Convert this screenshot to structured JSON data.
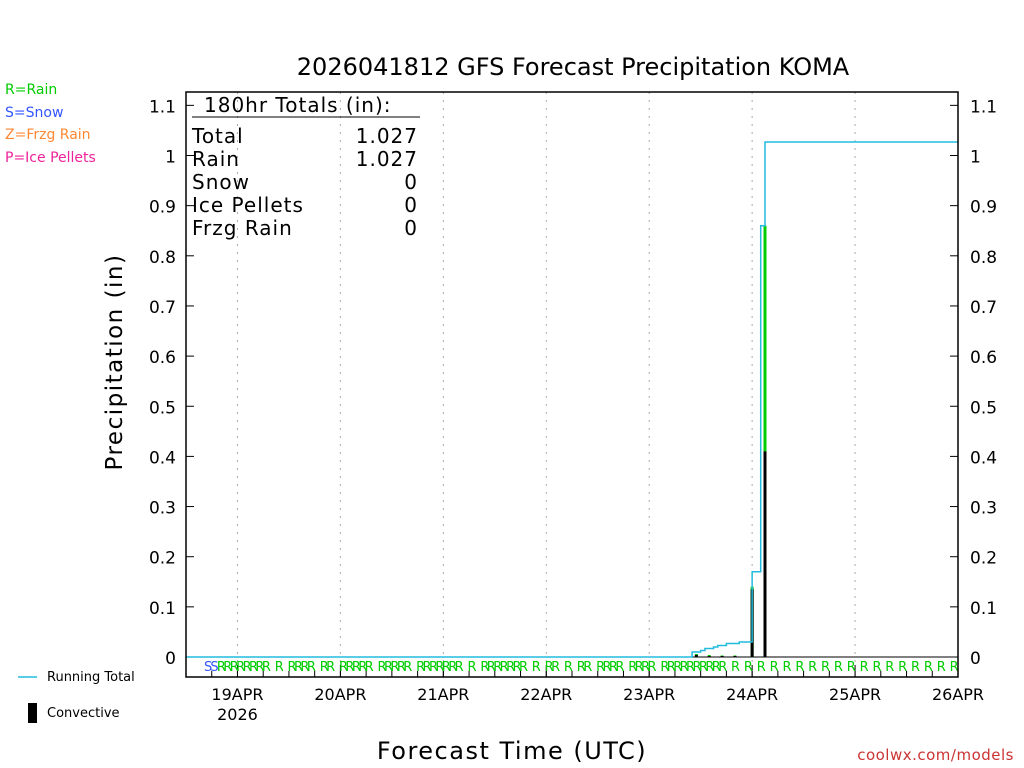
{
  "precip_type_legend": [
    {
      "label": "R=Rain",
      "color": "#00cc00"
    },
    {
      "label": "S=Snow",
      "color": "#3355ff"
    },
    {
      "label": "Z=Frzg Rain",
      "color": "#ff8833"
    },
    {
      "label": "P=Ice Pellets",
      "color": "#ee2299"
    }
  ],
  "bottom_legend": {
    "running_total_label": "Running Total",
    "convective_label": "Convective"
  },
  "watermark": "coolwx.com/models",
  "totals_box": {
    "header": "180hr Totals (in):",
    "rows": [
      {
        "label": "Total",
        "value": "1.027"
      },
      {
        "label": "Rain",
        "value": "1.027"
      },
      {
        "label": "Snow",
        "value": "0"
      },
      {
        "label": "Ice Pellets",
        "value": "0"
      },
      {
        "label": "Frzg Rain",
        "value": "0"
      }
    ]
  },
  "colors": {
    "running_total": "#22bbdd",
    "precip": "#00cc00",
    "convective": "#000000",
    "rain_marker": "#00cc00",
    "snow_marker": "#3355ff"
  },
  "chart_data": {
    "type": "bar",
    "title": "2026041812 GFS Forecast Precipitation KOMA",
    "xlabel": "Forecast Time (UTC)",
    "ylabel": "Precipitation (in)",
    "ylim": [
      0,
      1.1
    ],
    "y_ticks": [
      "0",
      "0.1",
      "0.2",
      "0.3",
      "0.4",
      "0.5",
      "0.6",
      "0.7",
      "0.8",
      "0.9",
      "1",
      "1.1"
    ],
    "x_range_forecast_hours": [
      0,
      180
    ],
    "x_ticks": [
      {
        "label": "19APR",
        "sublabel": "2026",
        "hour": 12
      },
      {
        "label": "20APR",
        "hour": 36
      },
      {
        "label": "21APR",
        "hour": 60
      },
      {
        "label": "22APR",
        "hour": 84
      },
      {
        "label": "23APR",
        "hour": 108
      },
      {
        "label": "24APR",
        "hour": 132
      },
      {
        "label": "25APR",
        "hour": 156
      },
      {
        "label": "26APR",
        "hour": 180
      }
    ],
    "grid": true,
    "series": [
      {
        "name": "Running Total",
        "type": "step-line",
        "points": [
          [
            0,
            0
          ],
          [
            117,
            0
          ],
          [
            118,
            0.01
          ],
          [
            120,
            0.013
          ],
          [
            121,
            0.017
          ],
          [
            123,
            0.02
          ],
          [
            124,
            0.023
          ],
          [
            126,
            0.027
          ],
          [
            129,
            0.03
          ],
          [
            132,
            0.17
          ],
          [
            134,
            0.86
          ],
          [
            135,
            1.027
          ],
          [
            180,
            1.027
          ]
        ]
      },
      {
        "name": "Precipitation",
        "type": "bar",
        "bars": [
          {
            "hour": 119,
            "value": 0.006,
            "convective": 0.004
          },
          {
            "hour": 122,
            "value": 0.004,
            "convective": 0.002
          },
          {
            "hour": 125,
            "value": 0.003,
            "convective": 0.002
          },
          {
            "hour": 128,
            "value": 0.003,
            "convective": 0.002
          },
          {
            "hour": 132,
            "value": 0.14,
            "convective": 0.135
          },
          {
            "hour": 135,
            "value": 0.86,
            "convective": 0.41
          }
        ]
      }
    ],
    "precip_type_markers": {
      "hour_start": 0,
      "hour_step": 1,
      "codes": "SSRRRRRRRR R RRRR RR RRRRR RRRRR RRRRRRR R RRRRRRR R RR R RR RRRR RRRR RRRRRRRRRR R R R R R R R R R R R R R R R R R R"
    }
  }
}
